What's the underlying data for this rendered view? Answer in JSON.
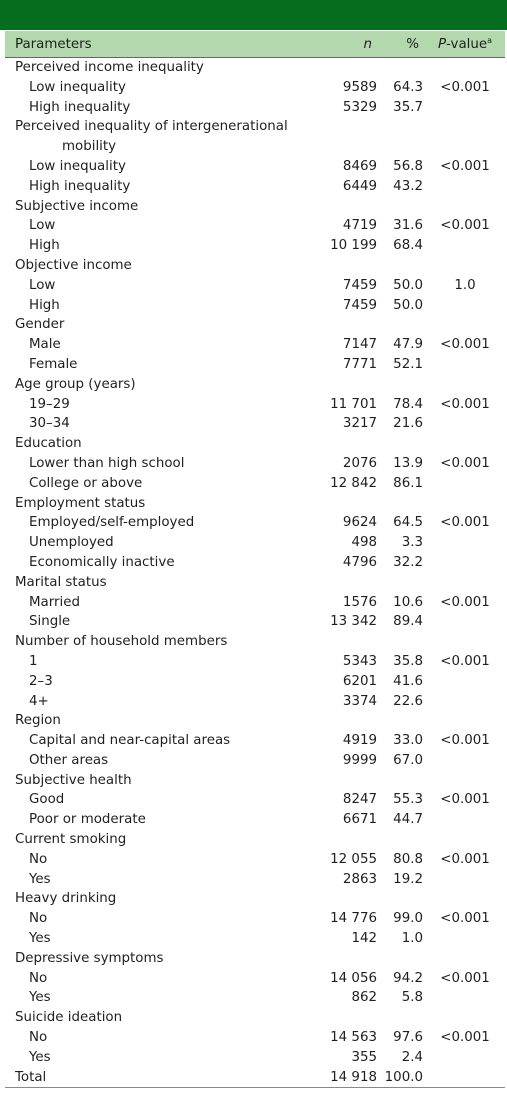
{
  "header": {
    "param": "Parameters",
    "n": "n",
    "pct": "%",
    "p_italic": "P",
    "p_rest": "-value",
    "p_sup": "a"
  },
  "rows": [
    {
      "label": "Perceived income inequality",
      "group": true
    },
    {
      "label": "Low inequality",
      "n": "9589",
      "pct": "64.3",
      "p": "<0.001"
    },
    {
      "label": "High inequality",
      "n": "5329",
      "pct": "35.7",
      "p": ""
    },
    {
      "label": "Perceived inequality of intergenerational",
      "label2": "mobility",
      "group": true
    },
    {
      "label": "Low inequality",
      "n": "8469",
      "pct": "56.8",
      "p": "<0.001"
    },
    {
      "label": "High inequality",
      "n": "6449",
      "pct": "43.2",
      "p": ""
    },
    {
      "label": "Subjective income",
      "group": true
    },
    {
      "label": "Low",
      "n": "4719",
      "pct": "31.6",
      "p": "<0.001"
    },
    {
      "label": "High",
      "n": "10 199",
      "pct": "68.4",
      "p": ""
    },
    {
      "label": "Objective income",
      "group": true
    },
    {
      "label": "Low",
      "n": "7459",
      "pct": "50.0",
      "p": "1.0"
    },
    {
      "label": "High",
      "n": "7459",
      "pct": "50.0",
      "p": ""
    },
    {
      "label": "Gender",
      "group": true
    },
    {
      "label": "Male",
      "n": "7147",
      "pct": "47.9",
      "p": "<0.001"
    },
    {
      "label": "Female",
      "n": "7771",
      "pct": "52.1",
      "p": ""
    },
    {
      "label": "Age group (years)",
      "group": true
    },
    {
      "label": "19–29",
      "n": "11 701",
      "pct": "78.4",
      "p": "<0.001"
    },
    {
      "label": "30–34",
      "n": "3217",
      "pct": "21.6",
      "p": ""
    },
    {
      "label": "Education",
      "group": true
    },
    {
      "label": "Lower than high school",
      "n": "2076",
      "pct": "13.9",
      "p": "<0.001"
    },
    {
      "label": "College or above",
      "n": "12 842",
      "pct": "86.1",
      "p": ""
    },
    {
      "label": "Employment status",
      "group": true
    },
    {
      "label": "Employed/self-employed",
      "n": "9624",
      "pct": "64.5",
      "p": "<0.001"
    },
    {
      "label": "Unemployed",
      "n": "498",
      "pct": "3.3",
      "p": ""
    },
    {
      "label": "Economically inactive",
      "n": "4796",
      "pct": "32.2",
      "p": ""
    },
    {
      "label": "Marital status",
      "group": true
    },
    {
      "label": "Married",
      "n": "1576",
      "pct": "10.6",
      "p": "<0.001"
    },
    {
      "label": "Single",
      "n": "13 342",
      "pct": "89.4",
      "p": ""
    },
    {
      "label": "Number of household members",
      "group": true
    },
    {
      "label": "1",
      "n": "5343",
      "pct": "35.8",
      "p": "<0.001"
    },
    {
      "label": "2–3",
      "n": "6201",
      "pct": "41.6",
      "p": ""
    },
    {
      "label": "4+",
      "n": "3374",
      "pct": "22.6",
      "p": ""
    },
    {
      "label": "Region",
      "group": true
    },
    {
      "label": "Capital and near-capital areas",
      "n": "4919",
      "pct": "33.0",
      "p": "<0.001"
    },
    {
      "label": "Other areas",
      "n": "9999",
      "pct": "67.0",
      "p": ""
    },
    {
      "label": "Subjective health",
      "group": true
    },
    {
      "label": "Good",
      "n": "8247",
      "pct": "55.3",
      "p": "<0.001"
    },
    {
      "label": "Poor or moderate",
      "n": "6671",
      "pct": "44.7",
      "p": ""
    },
    {
      "label": "Current smoking",
      "group": true
    },
    {
      "label": "No",
      "n": "12 055",
      "pct": "80.8",
      "p": "<0.001"
    },
    {
      "label": "Yes",
      "n": "2863",
      "pct": "19.2",
      "p": ""
    },
    {
      "label": "Heavy drinking",
      "group": true
    },
    {
      "label": "No",
      "n": "14 776",
      "pct": "99.0",
      "p": "<0.001"
    },
    {
      "label": "Yes",
      "n": "142",
      "pct": "1.0",
      "p": ""
    },
    {
      "label": "Depressive symptoms",
      "group": true
    },
    {
      "label": "No",
      "n": "14 056",
      "pct": "94.2",
      "p": "<0.001"
    },
    {
      "label": "Yes",
      "n": "862",
      "pct": "5.8",
      "p": ""
    },
    {
      "label": "Suicide ideation",
      "group": true
    },
    {
      "label": "No",
      "n": "14 563",
      "pct": "97.6",
      "p": "<0.001"
    },
    {
      "label": "Yes",
      "n": "355",
      "pct": "2.4",
      "p": ""
    },
    {
      "label": "Total",
      "n": "14 918",
      "pct": "100.0",
      "p": "",
      "total": true
    }
  ]
}
